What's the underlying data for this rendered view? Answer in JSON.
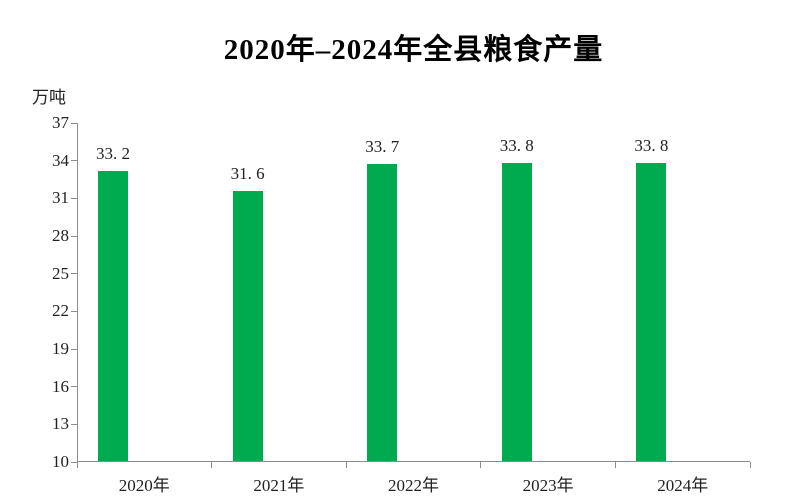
{
  "chart": {
    "title": "2020年–2024年全县粮食产量",
    "unit": "万吨"
  },
  "chart_data": {
    "type": "bar",
    "title": "2020年–2024年全县粮食产量",
    "unit_label": "万吨",
    "xlabel": "",
    "ylabel": "万吨",
    "categories": [
      "2020年",
      "2021年",
      "2022年",
      "2023年",
      "2024年"
    ],
    "values": [
      33.2,
      31.6,
      33.7,
      33.8,
      33.8
    ],
    "value_labels": [
      "33. 2",
      "31. 6",
      "33. 7",
      "33. 8",
      "33. 8"
    ],
    "ylim": [
      10,
      37
    ],
    "yticks": [
      10,
      13,
      16,
      19,
      22,
      25,
      28,
      31,
      34,
      37
    ],
    "grid": false,
    "legend": "none",
    "bar_color": "#00AB50",
    "axis_color": "#8C8C8C",
    "text_color": "#222222"
  }
}
